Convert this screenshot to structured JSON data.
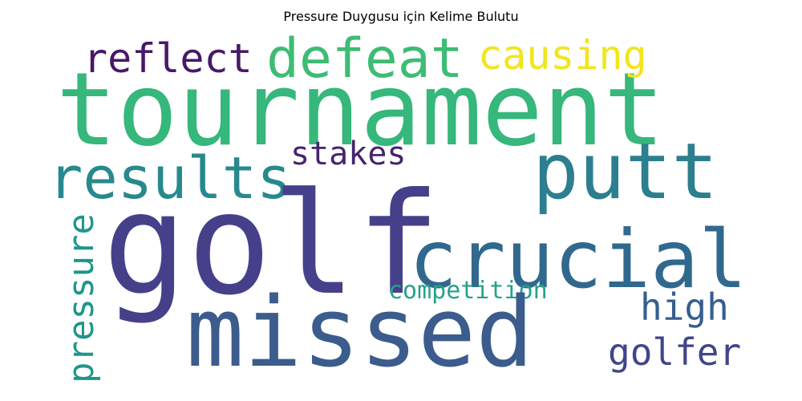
{
  "title": "Pressure Duygusu için Kelime Bulutu",
  "chart_data": {
    "type": "wordcloud",
    "title": "Pressure Duygusu için Kelime Bulutu",
    "colormap": "viridis",
    "background": "#ffffff",
    "words": [
      {
        "text": "golf",
        "color": "#46408b"
      },
      {
        "text": "tournament",
        "color": "#36b77b"
      },
      {
        "text": "missed",
        "color": "#3b5c8c"
      },
      {
        "text": "crucial",
        "color": "#31688e"
      },
      {
        "text": "putt",
        "color": "#2c7f8e"
      },
      {
        "text": "results",
        "color": "#27898e"
      },
      {
        "text": "defeat",
        "color": "#3dbc74"
      },
      {
        "text": "reflect",
        "color": "#471869"
      },
      {
        "text": "causing",
        "color": "#f1e51d"
      },
      {
        "text": "stakes",
        "color": "#46246f"
      },
      {
        "text": "pressure",
        "color": "#1f968b"
      },
      {
        "text": "competition",
        "color": "#25a28a"
      },
      {
        "text": "high",
        "color": "#355f8d"
      },
      {
        "text": "golfer",
        "color": "#404688"
      }
    ]
  }
}
